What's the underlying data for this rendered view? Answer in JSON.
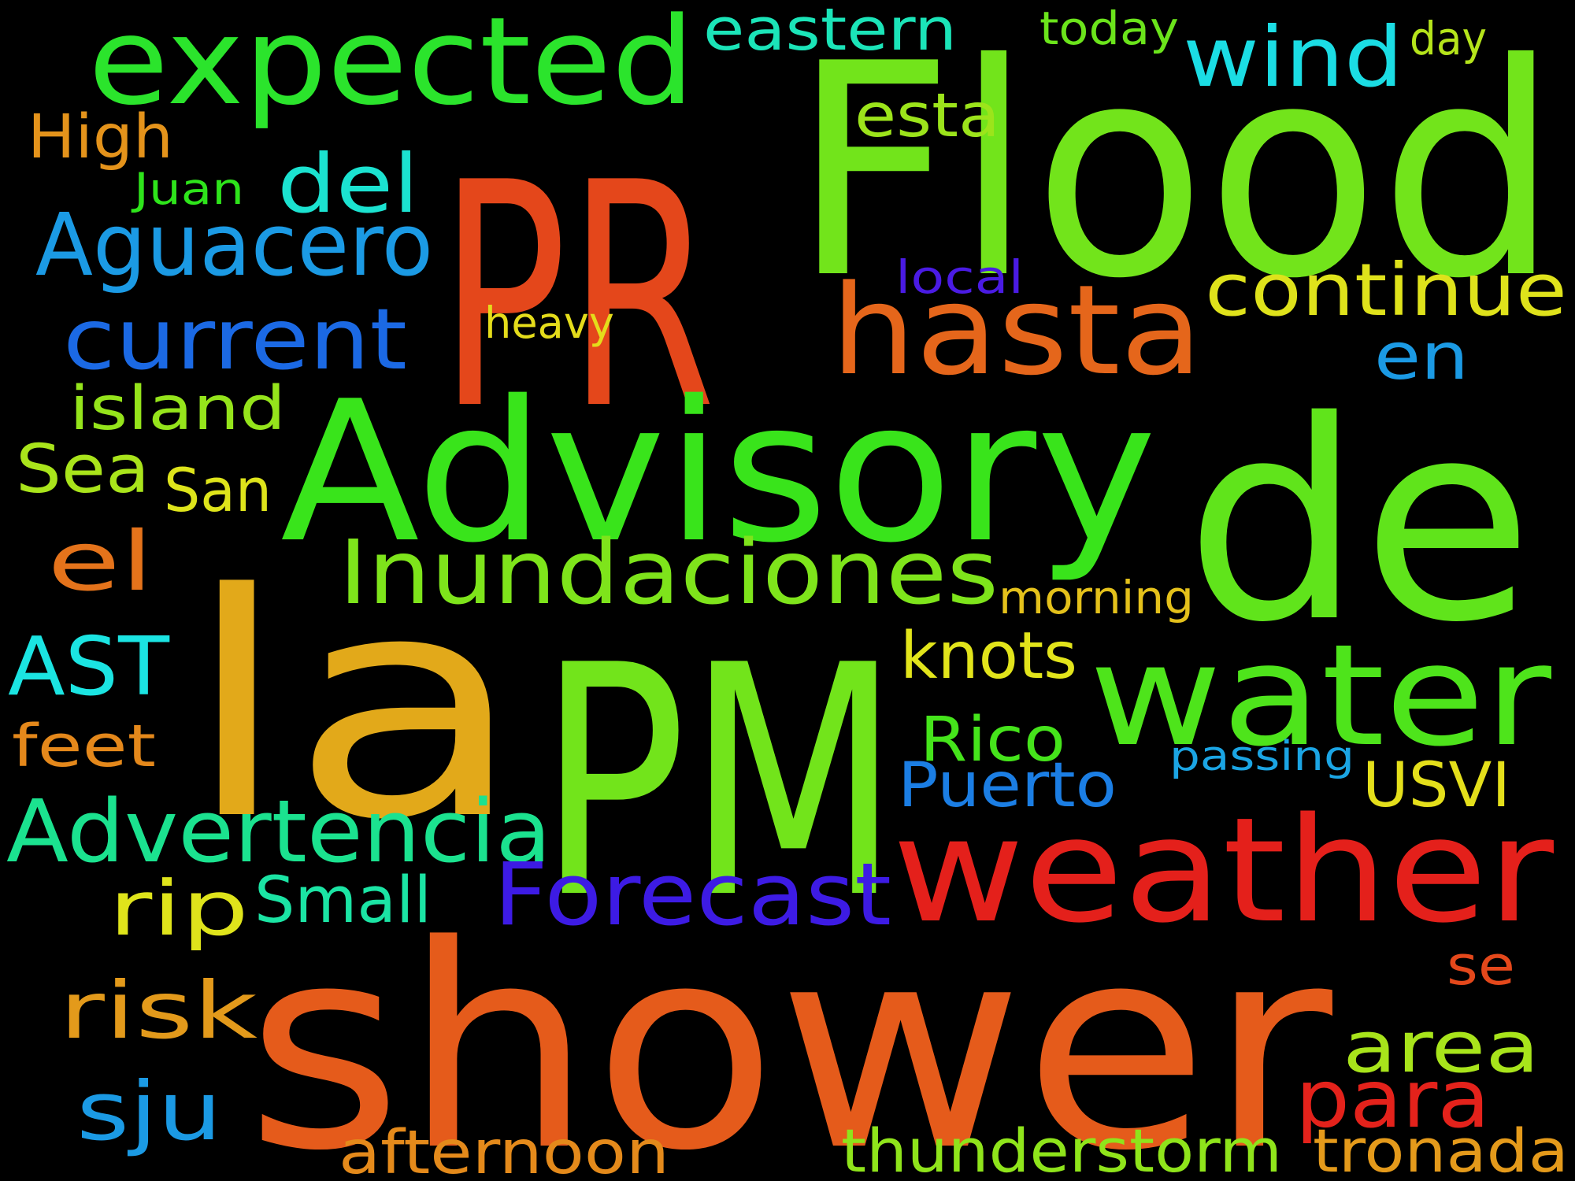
{
  "background": "#000000",
  "words": [
    {
      "text": "PR",
      "color": "#e4471b"
    },
    {
      "text": "Flood",
      "color": "#72e41b"
    },
    {
      "text": "la",
      "color": "#e2a91a"
    },
    {
      "text": "PM",
      "color": "#72e41b"
    },
    {
      "text": "shower",
      "color": "#e55b1b"
    },
    {
      "text": "de",
      "color": "#60e41b"
    },
    {
      "text": "Advisory",
      "color": "#39e41b"
    },
    {
      "text": "weather",
      "color": "#e4201b"
    },
    {
      "text": "water",
      "color": "#4ee41b"
    },
    {
      "text": "expected",
      "color": "#2be42c"
    },
    {
      "text": "hasta",
      "color": "#e5661b"
    },
    {
      "text": "Inundaciones",
      "color": "#7ee41b"
    },
    {
      "text": "Advertencia",
      "color": "#1be28f"
    },
    {
      "text": "continue",
      "color": "#dfe21b"
    },
    {
      "text": "Forecast",
      "color": "#3d1be4"
    },
    {
      "text": "current",
      "color": "#1b69e4"
    },
    {
      "text": "Aguacero",
      "color": "#1b9ae4"
    },
    {
      "text": "wind",
      "color": "#1bdde4"
    },
    {
      "text": "area",
      "color": "#a8e41b"
    },
    {
      "text": "para",
      "color": "#e4221b"
    },
    {
      "text": "sju",
      "color": "#1b9ae4"
    },
    {
      "text": "risk",
      "color": "#e39a1b"
    },
    {
      "text": "AST",
      "color": "#1be4e2"
    },
    {
      "text": "thunderstorm",
      "color": "#8fe41b"
    },
    {
      "text": "tronada",
      "color": "#e49a1b"
    },
    {
      "text": "afternoon",
      "color": "#e48a1b"
    },
    {
      "text": "del",
      "color": "#1be2d0"
    },
    {
      "text": "el",
      "color": "#e4731b"
    },
    {
      "text": "en",
      "color": "#1b9ae4"
    },
    {
      "text": "rip",
      "color": "#dfe41b"
    },
    {
      "text": "knots",
      "color": "#e2e41b"
    },
    {
      "text": "island",
      "color": "#95e41b"
    },
    {
      "text": "Sea",
      "color": "#a9e41b"
    },
    {
      "text": "Small",
      "color": "#1be4a4"
    },
    {
      "text": "Puerto",
      "color": "#1b7ee4"
    },
    {
      "text": "Rico",
      "color": "#45e41b"
    },
    {
      "text": "eastern",
      "color": "#1be4b8"
    },
    {
      "text": "esta",
      "color": "#9ce41b"
    },
    {
      "text": "USVI",
      "color": "#e4df1b"
    },
    {
      "text": "feet",
      "color": "#e4881b"
    },
    {
      "text": "High",
      "color": "#e4931b"
    },
    {
      "text": "San",
      "color": "#dee41b"
    },
    {
      "text": "se",
      "color": "#e4481b"
    },
    {
      "text": "morning",
      "color": "#e4c11b"
    },
    {
      "text": "heavy",
      "color": "#e4dc1b"
    },
    {
      "text": "passing",
      "color": "#1ba5e4"
    },
    {
      "text": "local",
      "color": "#4a1be4"
    },
    {
      "text": "today",
      "color": "#6be41b"
    },
    {
      "text": "day",
      "color": "#b5e41b"
    },
    {
      "text": "Juan",
      "color": "#2ee41b"
    }
  ]
}
